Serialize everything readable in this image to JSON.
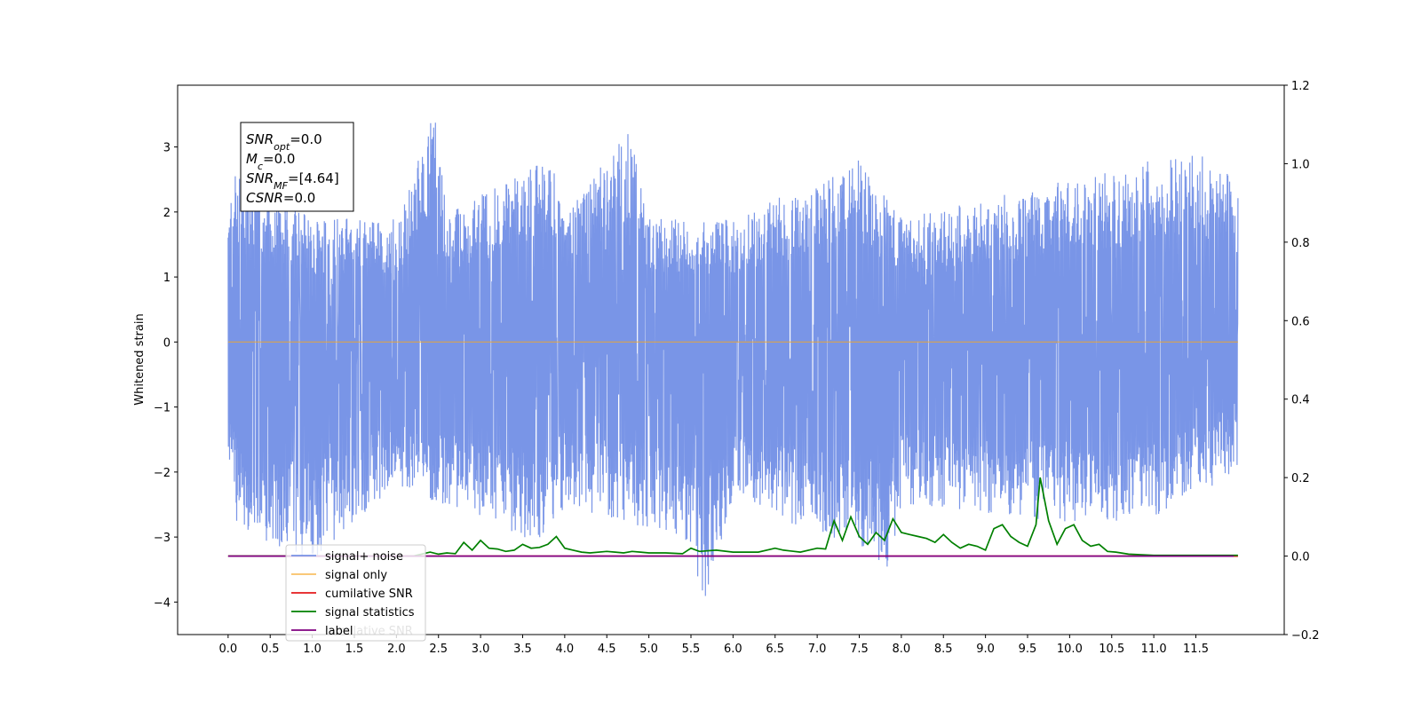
{
  "chart_data": {
    "type": "line",
    "title": "",
    "xlabel": "",
    "ylabel": "Whitened strain",
    "xlim": [
      -0.6,
      12.55
    ],
    "ylim": [
      -4.5,
      3.95
    ],
    "y2lim": [
      -0.2,
      1.2
    ],
    "grid": false,
    "legend_placement": "lower-left",
    "x_ticks": [
      "0.0",
      "0.5",
      "1.0",
      "1.5",
      "2.0",
      "2.5",
      "3.0",
      "3.5",
      "4.0",
      "4.5",
      "5.0",
      "5.5",
      "6.0",
      "6.5",
      "7.0",
      "7.5",
      "8.0",
      "8.5",
      "9.0",
      "9.5",
      "10.0",
      "10.5",
      "11.0",
      "11.5"
    ],
    "y_ticks": [
      3,
      2,
      1,
      0,
      -1,
      -2,
      -3,
      -4
    ],
    "y_tick_labels": [
      "3",
      "2",
      "1",
      "0",
      "−1",
      "−2",
      "−3",
      "−4"
    ],
    "y2_ticks": [
      1.2,
      1.0,
      0.8,
      0.6,
      0.4,
      0.2,
      0.0,
      -0.2
    ],
    "y2_tick_labels": [
      "1.2",
      "1.0",
      "0.8",
      "0.6",
      "0.4",
      "0.2",
      "0.0",
      "−0.2"
    ],
    "series": [
      {
        "name": "signal+ noise",
        "color": "#6a89e4",
        "axis": "left",
        "x_start": 0.0,
        "x_end": 12.0,
        "envelope_upper": [
          [
            0.0,
            1.9
          ],
          [
            0.1,
            2.8
          ],
          [
            1.0,
            1.9
          ],
          [
            2.0,
            1.9
          ],
          [
            2.45,
            3.55
          ],
          [
            2.6,
            2.0
          ],
          [
            3.9,
            2.9
          ],
          [
            4.0,
            1.9
          ],
          [
            4.75,
            3.35
          ],
          [
            5.0,
            1.9
          ],
          [
            6.0,
            1.9
          ],
          [
            7.5,
            2.8
          ],
          [
            8.0,
            1.9
          ],
          [
            11.5,
            2.95
          ],
          [
            12.0,
            2.5
          ]
        ],
        "envelope_lower": [
          [
            0.0,
            -1.9
          ],
          [
            0.1,
            -2.75
          ],
          [
            0.25,
            -3.0
          ],
          [
            1.0,
            -3.4
          ],
          [
            2.0,
            -2.2
          ],
          [
            3.8,
            -3.2
          ],
          [
            4.0,
            -2.5
          ],
          [
            5.5,
            -3.1
          ],
          [
            5.65,
            -4.1
          ],
          [
            6.0,
            -2.4
          ],
          [
            7.0,
            -3.05
          ],
          [
            7.4,
            -3.0
          ],
          [
            7.85,
            -3.5
          ],
          [
            8.0,
            -2.5
          ],
          [
            10.2,
            -2.8
          ],
          [
            11.0,
            -2.7
          ],
          [
            12.0,
            -2.0
          ]
        ]
      },
      {
        "name": "signal only",
        "color": "#f5a623",
        "axis": "left",
        "x": [
          0.0,
          12.0
        ],
        "values": [
          0.0,
          0.0
        ]
      },
      {
        "name": "cumilative SNR",
        "color": "#e41a1c",
        "axis": "right",
        "x": [
          0.0,
          12.0
        ],
        "values": [
          0.0,
          0.0
        ]
      },
      {
        "name": "signal statistics",
        "color": "#008000",
        "axis": "right",
        "x": [
          0.0,
          2.2,
          2.4,
          2.5,
          2.6,
          2.7,
          2.8,
          2.9,
          3.0,
          3.1,
          3.2,
          3.3,
          3.4,
          3.5,
          3.6,
          3.7,
          3.8,
          3.9,
          4.0,
          4.1,
          4.2,
          4.3,
          4.5,
          4.6,
          4.7,
          4.8,
          4.9,
          5.0,
          5.2,
          5.4,
          5.5,
          5.6,
          5.8,
          6.0,
          6.3,
          6.5,
          6.6,
          6.8,
          7.0,
          7.1,
          7.2,
          7.3,
          7.4,
          7.5,
          7.6,
          7.7,
          7.8,
          7.9,
          8.0,
          8.1,
          8.2,
          8.3,
          8.4,
          8.5,
          8.6,
          8.7,
          8.8,
          8.9,
          9.0,
          9.1,
          9.2,
          9.3,
          9.4,
          9.5,
          9.6,
          9.65,
          9.75,
          9.85,
          9.95,
          10.05,
          10.15,
          10.25,
          10.35,
          10.45,
          10.55,
          10.7,
          11.0,
          12.0
        ],
        "values": [
          0.0,
          0.0,
          0.01,
          0.005,
          0.008,
          0.006,
          0.035,
          0.015,
          0.04,
          0.02,
          0.018,
          0.012,
          0.015,
          0.03,
          0.02,
          0.022,
          0.03,
          0.05,
          0.02,
          0.015,
          0.01,
          0.008,
          0.012,
          0.01,
          0.008,
          0.012,
          0.01,
          0.008,
          0.008,
          0.006,
          0.02,
          0.012,
          0.015,
          0.01,
          0.01,
          0.02,
          0.015,
          0.01,
          0.02,
          0.018,
          0.09,
          0.04,
          0.1,
          0.05,
          0.03,
          0.06,
          0.04,
          0.095,
          0.06,
          0.055,
          0.05,
          0.045,
          0.035,
          0.055,
          0.035,
          0.02,
          0.03,
          0.025,
          0.015,
          0.07,
          0.08,
          0.05,
          0.035,
          0.025,
          0.08,
          0.2,
          0.09,
          0.03,
          0.07,
          0.08,
          0.04,
          0.025,
          0.03,
          0.012,
          0.01,
          0.005,
          0.002,
          0.002
        ]
      },
      {
        "name": "label",
        "color": "#800080",
        "axis": "right",
        "x": [
          0.0,
          11.95
        ],
        "values": [
          0.0,
          0.0
        ]
      }
    ],
    "legend_overlap_text": "cumilative SNR",
    "annotations": [
      {
        "base": "SNR",
        "sub": "opt",
        "value": "=0.0"
      },
      {
        "base": "M",
        "sub": "c",
        "value": "=0.0"
      },
      {
        "base": "SNR",
        "sub": "MF",
        "value": "=[4.64]"
      },
      {
        "base": "CSNR",
        "sub": "",
        "value": "=0.0"
      }
    ]
  }
}
